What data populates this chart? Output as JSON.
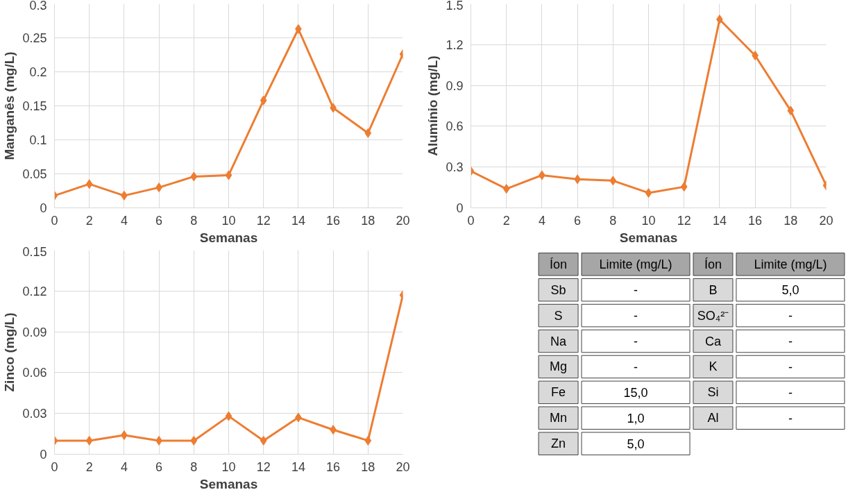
{
  "chart_data": [
    {
      "type": "line",
      "xlabel": "Semanas",
      "ylabel": "Manganês (mg/L)",
      "x": [
        0,
        2,
        4,
        6,
        8,
        10,
        12,
        14,
        16,
        18,
        20
      ],
      "series": [
        {
          "color": "#ed7d31",
          "values": [
            0.018,
            0.035,
            0.018,
            0.03,
            0.046,
            0.048,
            0.158,
            0.263,
            0.147,
            0.11,
            0.226
          ]
        }
      ],
      "xlim": [
        0,
        20
      ],
      "xticks": [
        0,
        2,
        4,
        6,
        8,
        10,
        12,
        14,
        16,
        18,
        20
      ],
      "ylim": [
        0,
        0.3
      ],
      "yticks": [
        0,
        0.05,
        0.1,
        0.15,
        0.2,
        0.25,
        0.3
      ],
      "grid": true,
      "marker": "diamond",
      "line_style": "solid"
    },
    {
      "type": "line",
      "xlabel": "Semanas",
      "ylabel": "Alumínio (mg/L)",
      "x": [
        0,
        2,
        4,
        6,
        8,
        10,
        12,
        14,
        16,
        18,
        20
      ],
      "series": [
        {
          "color": "#ed7d31",
          "values": [
            0.27,
            0.14,
            0.24,
            0.21,
            0.2,
            0.11,
            0.155,
            1.385,
            1.12,
            0.715,
            0.165
          ]
        }
      ],
      "xlim": [
        0,
        20
      ],
      "xticks": [
        0,
        2,
        4,
        6,
        8,
        10,
        12,
        14,
        16,
        18,
        20
      ],
      "ylim": [
        0,
        1.5
      ],
      "yticks": [
        0,
        0.3,
        0.6,
        0.9,
        1.2,
        1.5
      ],
      "grid": true,
      "marker": "diamond",
      "line_style": "solid"
    },
    {
      "type": "line",
      "xlabel": "Semanas",
      "ylabel": "Zinco (mg/L)",
      "x": [
        0,
        2,
        4,
        6,
        8,
        10,
        12,
        14,
        16,
        18,
        20
      ],
      "series": [
        {
          "color": "#ed7d31",
          "values": [
            0.01,
            0.01,
            0.014,
            0.01,
            0.01,
            0.028,
            0.01,
            0.027,
            0.018,
            0.01,
            0.117
          ]
        }
      ],
      "xlim": [
        0,
        20
      ],
      "xticks": [
        0,
        2,
        4,
        6,
        8,
        10,
        12,
        14,
        16,
        18,
        20
      ],
      "ylim": [
        0,
        0.15
      ],
      "yticks": [
        0,
        0.03,
        0.06,
        0.09,
        0.12,
        0.15
      ],
      "grid": true,
      "marker": "diamond",
      "line_style": "solid"
    },
    {
      "type": "other",
      "annotations": [
        "Íon",
        "Limite (mg/L)",
        "Íon",
        "Limite (mg/L)",
        "Sb",
        "-",
        "B",
        "5,0",
        "S",
        "-",
        "SO₄²⁻",
        "-",
        "Na",
        "-",
        "Ca",
        "-",
        "Mg",
        "-",
        "K",
        "-",
        "Fe",
        "15,0",
        "Si",
        "-",
        "Mn",
        "1,0",
        "Al",
        "-",
        "Zn",
        "5,0"
      ]
    }
  ]
}
